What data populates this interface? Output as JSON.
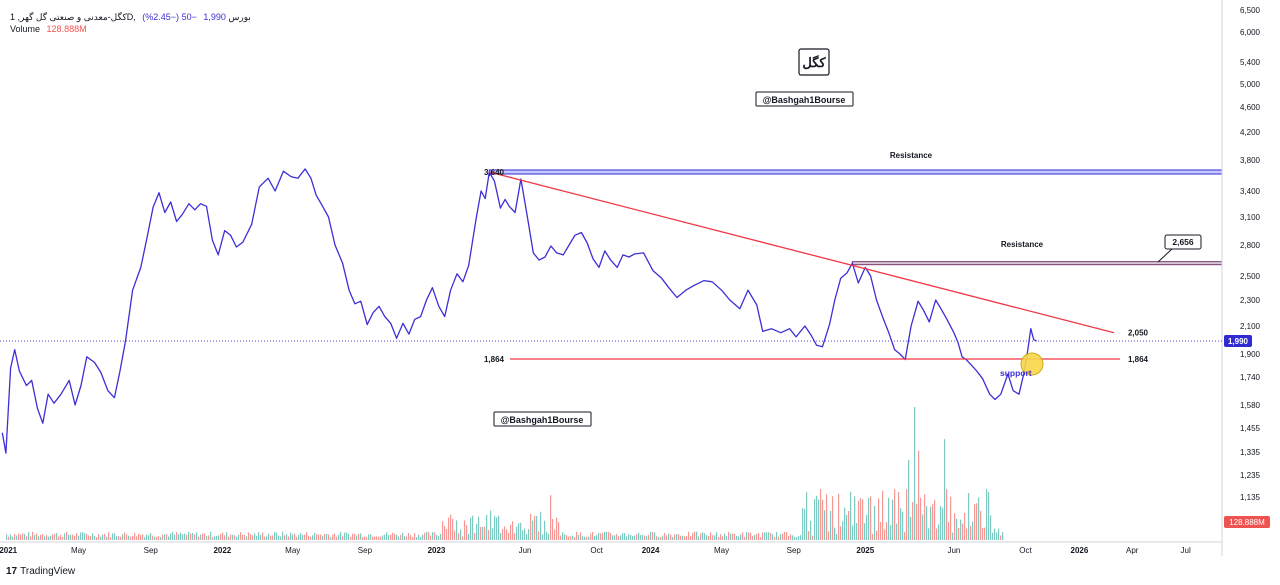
{
  "header": {
    "symbol_line": "کگل-معدنی و صنعتی گل گهر, 1D, بورس",
    "price": "1,990",
    "change": "−50 (−2.45%)",
    "volume_label": "Volume",
    "volume_value": "128.888M"
  },
  "branding": {
    "tradingview": "TradingView",
    "logo_glyph": "17"
  },
  "chart_data": {
    "type": "line",
    "scale": "log",
    "grid": false,
    "colors": {
      "price_line": "#3c2fd6",
      "trendline": "#f23645",
      "resistance_band": "#2f2bd0",
      "volume_up": "#26a69a",
      "volume_down": "#ef5350",
      "support_marker": "#f9d648"
    },
    "x_ticks": [
      "2021",
      "May",
      "Sep",
      "2022",
      "May",
      "Sep",
      "2023",
      "Jun",
      "Oct",
      "2024",
      "May",
      "Sep",
      "2025",
      "Jun",
      "Oct",
      "2026",
      "Apr",
      "Jul"
    ],
    "y_ticks": [
      6500,
      6000,
      5400,
      5000,
      4600,
      4200,
      3800,
      3400,
      3100,
      2800,
      2500,
      2300,
      2100,
      1900,
      1740,
      1580,
      1455,
      1335,
      1235,
      1135
    ],
    "y_tick_labels": [
      "6,500",
      "6,000",
      "5,400",
      "5,000",
      "4,600",
      "4,200",
      "3,800",
      "3,400",
      "3,100",
      "2,800",
      "2,500",
      "2,300",
      "2,100",
      "1,900",
      "1,740",
      "1,580",
      "1,455",
      "1,335",
      "1,235",
      "1,135"
    ],
    "ylim": [
      1050,
      6600
    ],
    "series": [
      {
        "values": [
          [
            "2020-12-22",
            1430
          ],
          [
            "2020-12-28",
            1330
          ],
          [
            "2021-01-05",
            1800
          ],
          [
            "2021-01-12",
            1930
          ],
          [
            "2021-01-20",
            1780
          ],
          [
            "2021-02-01",
            1690
          ],
          [
            "2021-02-10",
            1720
          ],
          [
            "2021-02-20",
            1560
          ],
          [
            "2021-03-01",
            1480
          ],
          [
            "2021-03-10",
            1640
          ],
          [
            "2021-03-20",
            1590
          ],
          [
            "2021-04-01",
            1640
          ],
          [
            "2021-04-15",
            1720
          ],
          [
            "2021-04-25",
            1580
          ],
          [
            "2021-05-05",
            1690
          ],
          [
            "2021-05-15",
            1880
          ],
          [
            "2021-05-28",
            1840
          ],
          [
            "2021-06-08",
            1770
          ],
          [
            "2021-06-20",
            1660
          ],
          [
            "2021-07-01",
            1620
          ],
          [
            "2021-07-10",
            1770
          ],
          [
            "2021-07-20",
            1990
          ],
          [
            "2021-08-01",
            2380
          ],
          [
            "2021-08-15",
            2580
          ],
          [
            "2021-08-25",
            2860
          ],
          [
            "2021-09-05",
            3210
          ],
          [
            "2021-09-15",
            3380
          ],
          [
            "2021-09-25",
            3150
          ],
          [
            "2021-10-05",
            3270
          ],
          [
            "2021-10-15",
            3050
          ],
          [
            "2021-10-25",
            3130
          ],
          [
            "2021-11-05",
            3250
          ],
          [
            "2021-11-15",
            3180
          ],
          [
            "2021-11-25",
            3250
          ],
          [
            "2021-12-05",
            3220
          ],
          [
            "2021-12-15",
            2850
          ],
          [
            "2021-12-25",
            2700
          ],
          [
            "2022-01-05",
            2950
          ],
          [
            "2022-01-15",
            2900
          ],
          [
            "2022-01-25",
            2780
          ],
          [
            "2022-02-05",
            2830
          ],
          [
            "2022-02-20",
            3020
          ],
          [
            "2022-03-05",
            3450
          ],
          [
            "2022-03-20",
            3560
          ],
          [
            "2022-04-01",
            3400
          ],
          [
            "2022-04-15",
            3650
          ],
          [
            "2022-04-28",
            3580
          ],
          [
            "2022-05-10",
            3560
          ],
          [
            "2022-05-22",
            3680
          ],
          [
            "2022-06-01",
            3560
          ],
          [
            "2022-06-10",
            3350
          ],
          [
            "2022-06-20",
            3230
          ],
          [
            "2022-07-01",
            3100
          ],
          [
            "2022-07-12",
            2800
          ],
          [
            "2022-07-25",
            2620
          ],
          [
            "2022-08-05",
            2380
          ],
          [
            "2022-08-15",
            2270
          ],
          [
            "2022-08-25",
            2290
          ],
          [
            "2022-09-05",
            2110
          ],
          [
            "2022-09-15",
            2200
          ],
          [
            "2022-09-25",
            2250
          ],
          [
            "2022-10-05",
            2170
          ],
          [
            "2022-10-15",
            2120
          ],
          [
            "2022-10-25",
            2010
          ],
          [
            "2022-11-05",
            2120
          ],
          [
            "2022-11-15",
            2040
          ],
          [
            "2022-11-25",
            2150
          ],
          [
            "2022-12-05",
            2170
          ],
          [
            "2022-12-15",
            2300
          ],
          [
            "2022-12-25",
            2400
          ],
          [
            "2023-01-05",
            2250
          ],
          [
            "2023-01-15",
            2170
          ],
          [
            "2023-01-25",
            2380
          ],
          [
            "2023-02-05",
            2520
          ],
          [
            "2023-02-15",
            2450
          ],
          [
            "2023-02-25",
            2600
          ],
          [
            "2023-03-10",
            3100
          ],
          [
            "2023-03-18",
            3400
          ],
          [
            "2023-03-25",
            3310
          ],
          [
            "2023-04-01",
            3640
          ],
          [
            "2023-04-10",
            3520
          ],
          [
            "2023-04-20",
            3200
          ],
          [
            "2023-04-28",
            3300
          ],
          [
            "2023-05-05",
            3220
          ],
          [
            "2023-05-15",
            3150
          ],
          [
            "2023-05-25",
            3550
          ],
          [
            "2023-06-05",
            3100
          ],
          [
            "2023-06-15",
            2720
          ],
          [
            "2023-06-25",
            2650
          ],
          [
            "2023-07-05",
            2680
          ],
          [
            "2023-07-15",
            2790
          ],
          [
            "2023-07-25",
            2720
          ],
          [
            "2023-08-05",
            2700
          ],
          [
            "2023-08-15",
            2800
          ],
          [
            "2023-08-25",
            2900
          ],
          [
            "2023-09-05",
            2930
          ],
          [
            "2023-09-15",
            2820
          ],
          [
            "2023-09-25",
            2660
          ],
          [
            "2023-10-05",
            2580
          ],
          [
            "2023-10-15",
            2740
          ],
          [
            "2023-10-25",
            2650
          ],
          [
            "2023-11-05",
            2580
          ],
          [
            "2023-11-15",
            2700
          ],
          [
            "2023-11-25",
            2680
          ],
          [
            "2023-12-05",
            2710
          ],
          [
            "2023-12-20",
            2720
          ],
          [
            "2024-01-05",
            2550
          ],
          [
            "2024-01-20",
            2480
          ],
          [
            "2024-02-01",
            2400
          ],
          [
            "2024-02-15",
            2320
          ],
          [
            "2024-03-01",
            2380
          ],
          [
            "2024-03-15",
            2420
          ],
          [
            "2024-04-01",
            2460
          ],
          [
            "2024-04-15",
            2450
          ],
          [
            "2024-05-01",
            2380
          ],
          [
            "2024-05-15",
            2300
          ],
          [
            "2024-06-01",
            2230
          ],
          [
            "2024-06-15",
            2380
          ],
          [
            "2024-06-30",
            2260
          ],
          [
            "2024-07-10",
            2060
          ],
          [
            "2024-07-25",
            2080
          ],
          [
            "2024-08-10",
            2050
          ],
          [
            "2024-08-25",
            2080
          ],
          [
            "2024-09-05",
            2020
          ],
          [
            "2024-09-20",
            2100
          ],
          [
            "2024-10-01",
            2030
          ],
          [
            "2024-10-10",
            1960
          ],
          [
            "2024-10-20",
            1950
          ],
          [
            "2024-11-01",
            2110
          ],
          [
            "2024-11-10",
            2300
          ],
          [
            "2024-11-20",
            2480
          ],
          [
            "2024-12-01",
            2530
          ],
          [
            "2024-12-10",
            2620
          ],
          [
            "2024-12-20",
            2440
          ],
          [
            "2025-01-01",
            2580
          ],
          [
            "2025-01-10",
            2500
          ],
          [
            "2025-01-20",
            2300
          ],
          [
            "2025-02-01",
            2150
          ],
          [
            "2025-02-10",
            2050
          ],
          [
            "2025-02-20",
            1930
          ],
          [
            "2025-03-01",
            1900
          ],
          [
            "2025-03-10",
            1860
          ],
          [
            "2025-03-20",
            2100
          ],
          [
            "2025-04-01",
            2290
          ],
          [
            "2025-04-10",
            2220
          ],
          [
            "2025-04-20",
            2130
          ],
          [
            "2025-05-01",
            2300
          ],
          [
            "2025-05-10",
            2230
          ],
          [
            "2025-05-20",
            2150
          ],
          [
            "2025-06-01",
            2050
          ],
          [
            "2025-06-08",
            1980
          ],
          [
            "2025-06-15",
            1880
          ],
          [
            "2025-06-22",
            1860
          ],
          [
            "2025-07-01",
            1820
          ],
          [
            "2025-07-10",
            1780
          ],
          [
            "2025-07-20",
            1730
          ],
          [
            "2025-08-01",
            1640
          ],
          [
            "2025-08-10",
            1610
          ],
          [
            "2025-08-20",
            1640
          ],
          [
            "2025-09-01",
            1760
          ],
          [
            "2025-09-10",
            1660
          ],
          [
            "2025-09-20",
            1640
          ],
          [
            "2025-09-28",
            1760
          ],
          [
            "2025-10-04",
            1900
          ],
          [
            "2025-10-10",
            2080
          ],
          [
            "2025-10-15",
            2000
          ],
          [
            "2025-10-20",
            1990
          ]
        ]
      }
    ],
    "volume": {
      "type": "bar",
      "current_value_label": "128.888M"
    },
    "annotations": {
      "resistance_upper": {
        "label": "Resistance",
        "value": 3640
      },
      "resistance_lower": {
        "label": "Resistance",
        "value": 2620
      },
      "trendline": {
        "from": [
          "2023-04-01",
          3640
        ],
        "to": [
          "2026-03-01",
          2050
        ],
        "start_label": "3,640",
        "end_label": "2,050"
      },
      "support": {
        "value": 1864,
        "left_label": "1,864",
        "right_label": "1,864",
        "text": "support"
      },
      "callout": "2,656",
      "current_price": "1,990",
      "watermark_top": "@Bashgah1Bourse",
      "watermark_bottom": "@Bashgah1Bourse",
      "title_box": "کگل"
    }
  }
}
